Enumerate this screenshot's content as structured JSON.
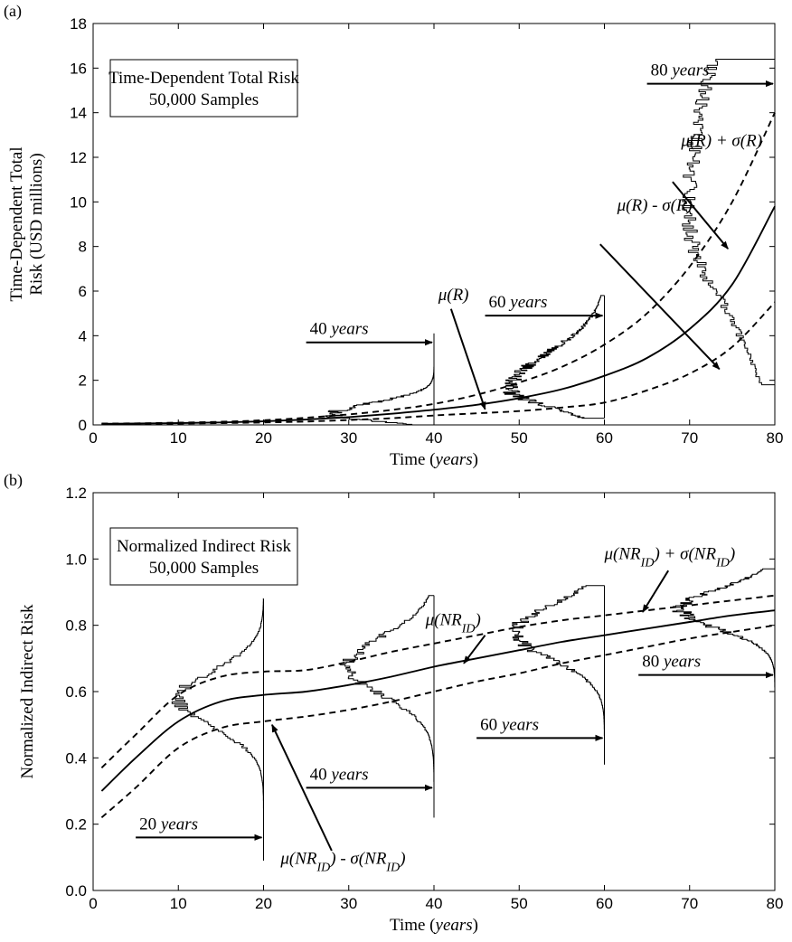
{
  "chart_data": [
    {
      "panel_label": "(a)",
      "type": "line",
      "xlabel": "Time (years)",
      "ylabel_line1": "Time-Dependent Total",
      "ylabel_line2": "Risk (USD millions)",
      "xlim": [
        0,
        80
      ],
      "ylim": [
        0,
        18
      ],
      "xticks": [
        0,
        10,
        20,
        30,
        40,
        50,
        60,
        70,
        80
      ],
      "yticks": [
        0,
        2,
        4,
        6,
        8,
        10,
        12,
        14,
        16,
        18
      ],
      "box_title": "Time-Dependent Total Risk",
      "box_subtitle": "50,000 Samples",
      "x": [
        1,
        5,
        10,
        15,
        20,
        25,
        30,
        35,
        40,
        45,
        50,
        55,
        60,
        65,
        70,
        75,
        80
      ],
      "series": [
        {
          "role": "mean",
          "style": "solid",
          "values": [
            0.05,
            0.06,
            0.08,
            0.11,
            0.16,
            0.24,
            0.35,
            0.5,
            0.68,
            0.9,
            1.2,
            1.6,
            2.2,
            3.0,
            4.3,
            6.3,
            9.8
          ]
        },
        {
          "role": "mean_plus_sd",
          "style": "dashed",
          "values": [
            0.06,
            0.07,
            0.1,
            0.14,
            0.21,
            0.32,
            0.47,
            0.67,
            0.94,
            1.35,
            1.9,
            2.6,
            3.6,
            5.0,
            7.1,
            10.0,
            14.0
          ]
        },
        {
          "role": "mean_minus_sd",
          "style": "dashed",
          "values": [
            0.04,
            0.05,
            0.06,
            0.08,
            0.11,
            0.15,
            0.22,
            0.3,
            0.42,
            0.52,
            0.62,
            0.78,
            1.0,
            1.55,
            2.3,
            3.5,
            5.5
          ]
        }
      ],
      "distributions": [
        {
          "time": 40,
          "label_num": "40",
          "label_unit": "years",
          "y_min": 0.0,
          "y_max": 4.1,
          "mode": 0.45,
          "sd": 0.25,
          "peak_years": 12,
          "arrow_start_x": 25,
          "arrow_y": 3.7
        },
        {
          "time": 60,
          "label_num": "60",
          "label_unit": "years",
          "y_min": 0.3,
          "y_max": 5.8,
          "mode": 1.6,
          "sd": 0.75,
          "peak_years": 11,
          "arrow_start_x": 46,
          "arrow_y": 4.9
        },
        {
          "time": 80,
          "label_num": "80",
          "label_unit": "years",
          "y_min": 1.8,
          "y_max": 16.4,
          "mode": 9.4,
          "sd": 4.0,
          "peak_years": 10,
          "arrow_start_x": 65,
          "arrow_y": 15.3
        }
      ],
      "annotations": [
        {
          "label": "μ(R)",
          "text_x": 40.5,
          "text_y": 5.6,
          "arrow_from": [
            42,
            5.2
          ],
          "arrow_to": [
            46,
            0.7
          ]
        },
        {
          "label": "μ(R) + σ(R)",
          "text_x": 69,
          "text_y": 12.5,
          "arrow_from": [
            68,
            10.9
          ],
          "arrow_to": [
            74.5,
            7.9
          ]
        },
        {
          "label": "μ(R) - σ(R)",
          "text_x": 61.5,
          "text_y": 9.6,
          "arrow_from": [
            59.5,
            8.1
          ],
          "arrow_to": [
            73.5,
            2.5
          ]
        }
      ]
    },
    {
      "panel_label": "(b)",
      "type": "line",
      "xlabel": "Time (years)",
      "ylabel": "Normalized Indirect Risk",
      "xlim": [
        0,
        80
      ],
      "ylim": [
        0.0,
        1.2
      ],
      "xticks": [
        0,
        10,
        20,
        30,
        40,
        50,
        60,
        70,
        80
      ],
      "yticks": [
        0.0,
        0.2,
        0.4,
        0.6,
        0.8,
        1.0,
        1.2
      ],
      "ytick_labels": [
        "0.0",
        "0.2",
        "0.4",
        "0.6",
        "0.8",
        "1.0",
        "1.2"
      ],
      "box_title": "Normalized Indirect Risk",
      "box_subtitle": "50,000 Samples",
      "x": [
        1,
        5,
        10,
        15,
        20,
        25,
        30,
        35,
        40,
        45,
        50,
        55,
        60,
        65,
        70,
        75,
        80
      ],
      "series": [
        {
          "role": "mean",
          "style": "solid",
          "values": [
            0.3,
            0.4,
            0.51,
            0.57,
            0.59,
            0.6,
            0.62,
            0.645,
            0.675,
            0.7,
            0.725,
            0.75,
            0.77,
            0.79,
            0.81,
            0.83,
            0.845
          ]
        },
        {
          "role": "mean_plus_sd",
          "style": "dashed",
          "values": [
            0.37,
            0.47,
            0.59,
            0.645,
            0.66,
            0.665,
            0.69,
            0.72,
            0.745,
            0.77,
            0.795,
            0.815,
            0.83,
            0.845,
            0.86,
            0.875,
            0.89
          ]
        },
        {
          "role": "mean_minus_sd",
          "style": "dashed",
          "values": [
            0.22,
            0.31,
            0.43,
            0.49,
            0.51,
            0.525,
            0.545,
            0.57,
            0.6,
            0.63,
            0.655,
            0.685,
            0.71,
            0.735,
            0.76,
            0.78,
            0.8
          ]
        }
      ],
      "distributions": [
        {
          "time": 20,
          "label_num": "20",
          "label_unit": "years",
          "y_min": 0.09,
          "y_max": 0.88,
          "mode": 0.58,
          "sd": 0.085,
          "peak_years": 10,
          "arrow_start_x": 5,
          "arrow_y": 0.16
        },
        {
          "time": 40,
          "label_num": "40",
          "label_unit": "years",
          "y_min": 0.22,
          "y_max": 0.89,
          "mode": 0.68,
          "sd": 0.09,
          "peak_years": 10,
          "arrow_start_x": 25,
          "arrow_y": 0.31
        },
        {
          "time": 60,
          "label_num": "60",
          "label_unit": "years",
          "y_min": 0.38,
          "y_max": 0.92,
          "mode": 0.78,
          "sd": 0.08,
          "peak_years": 10.5,
          "arrow_start_x": 45,
          "arrow_y": 0.46
        },
        {
          "time": 80,
          "label_num": "80",
          "label_unit": "years",
          "y_min": 0.6,
          "y_max": 0.97,
          "mode": 0.85,
          "sd": 0.06,
          "peak_years": 11,
          "arrow_start_x": 64,
          "arrow_y": 0.65
        }
      ],
      "annotations": [
        {
          "label": "μ(NR_ID)",
          "text_x": 39,
          "text_y": 0.8,
          "arrow_from": [
            46,
            0.77
          ],
          "arrow_to": [
            43.5,
            0.685
          ]
        },
        {
          "label": "μ(NR_ID) + σ(NR_ID)",
          "text_x": 60,
          "text_y": 1.0,
          "arrow_from": [
            67.5,
            0.965
          ],
          "arrow_to": [
            64.5,
            0.84
          ]
        },
        {
          "label": "μ(NR_ID) - σ(NR_ID)",
          "text_x": 22,
          "text_y": 0.08,
          "arrow_from": [
            28,
            0.12
          ],
          "arrow_to": [
            21,
            0.5
          ]
        }
      ]
    }
  ]
}
